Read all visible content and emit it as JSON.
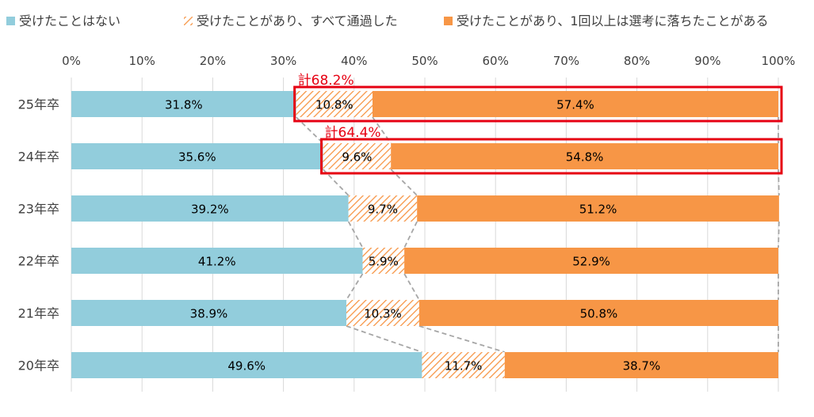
{
  "chart_data": {
    "type": "bar",
    "orientation": "horizontal",
    "stacked": true,
    "categories": [
      "25年卒",
      "24年卒",
      "23年卒",
      "22年卒",
      "21年卒",
      "20年卒"
    ],
    "series": [
      {
        "name": "受けたことはない",
        "values": [
          31.8,
          35.6,
          39.2,
          41.2,
          38.9,
          49.6
        ],
        "color": "#92cddc",
        "pattern": "solid"
      },
      {
        "name": "受けたことがあり、すべて通過した",
        "values": [
          10.8,
          9.6,
          9.7,
          5.9,
          10.3,
          11.7
        ],
        "color": "#f79646",
        "pattern": "hatch"
      },
      {
        "name": "受けたことがあり、1回以上は選考に落ちたことがある",
        "values": [
          57.4,
          54.8,
          51.2,
          52.9,
          50.8,
          38.7
        ],
        "color": "#f79646",
        "pattern": "solid"
      }
    ],
    "value_labels": [
      [
        "31.8%",
        "10.8%",
        "57.4%"
      ],
      [
        "35.6%",
        "9.6%",
        "54.8%"
      ],
      [
        "39.2%",
        "9.7%",
        "51.2%"
      ],
      [
        "41.2%",
        "5.9%",
        "52.9%"
      ],
      [
        "38.9%",
        "10.3%",
        "50.8%"
      ],
      [
        "49.6%",
        "11.7%",
        "38.7%"
      ]
    ],
    "x_ticks": [
      "0%",
      "10%",
      "20%",
      "30%",
      "40%",
      "50%",
      "60%",
      "70%",
      "80%",
      "90%",
      "100%"
    ],
    "xlim": [
      0,
      100
    ],
    "legend_position": "top",
    "grid": true,
    "annotations": [
      {
        "text": "計68.2%",
        "category": "25年卒",
        "color": "#e60012"
      },
      {
        "text": "計64.4%",
        "category": "24年卒",
        "color": "#e60012"
      }
    ],
    "connector_lines": "dashed",
    "highlight_color": "#e60012"
  }
}
